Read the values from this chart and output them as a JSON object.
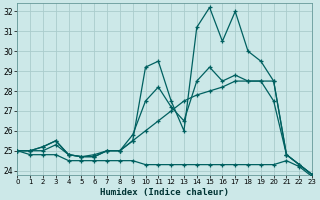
{
  "xlabel": "Humidex (Indice chaleur)",
  "bg_color": "#cce8e8",
  "grid_color": "#aacccc",
  "line_color": "#006060",
  "x": [
    0,
    1,
    2,
    3,
    4,
    5,
    6,
    7,
    8,
    9,
    10,
    11,
    12,
    13,
    14,
    15,
    16,
    17,
    18,
    19,
    20,
    21,
    22,
    23
  ],
  "line1": [
    25.0,
    25.0,
    25.2,
    25.5,
    24.8,
    24.7,
    24.7,
    25.0,
    25.0,
    25.5,
    29.2,
    29.5,
    27.5,
    26.0,
    31.2,
    32.2,
    30.5,
    32.0,
    30.0,
    29.5,
    28.5,
    24.8,
    24.3,
    23.8
  ],
  "line2": [
    25.0,
    25.0,
    25.2,
    25.5,
    24.8,
    24.7,
    24.7,
    25.0,
    25.0,
    25.8,
    27.5,
    28.2,
    27.2,
    26.5,
    28.5,
    29.2,
    28.5,
    28.8,
    28.5,
    28.5,
    28.5,
    24.8,
    24.3,
    23.8
  ],
  "line3": [
    25.0,
    25.0,
    25.0,
    25.3,
    24.8,
    24.7,
    24.8,
    25.0,
    25.0,
    25.5,
    26.0,
    26.5,
    27.0,
    27.5,
    27.8,
    28.0,
    28.2,
    28.5,
    28.5,
    28.5,
    27.5,
    24.8,
    24.3,
    23.8
  ],
  "line4": [
    25.0,
    24.8,
    24.8,
    24.8,
    24.5,
    24.5,
    24.5,
    24.5,
    24.5,
    24.5,
    24.3,
    24.3,
    24.3,
    24.3,
    24.3,
    24.3,
    24.3,
    24.3,
    24.3,
    24.3,
    24.3,
    24.5,
    24.2,
    23.7
  ],
  "xlim": [
    0,
    23
  ],
  "ylim": [
    23.8,
    32.4
  ],
  "yticks": [
    24,
    25,
    26,
    27,
    28,
    29,
    30,
    31,
    32
  ],
  "xticks": [
    0,
    1,
    2,
    3,
    4,
    5,
    6,
    7,
    8,
    9,
    10,
    11,
    12,
    13,
    14,
    15,
    16,
    17,
    18,
    19,
    20,
    21,
    22,
    23
  ]
}
